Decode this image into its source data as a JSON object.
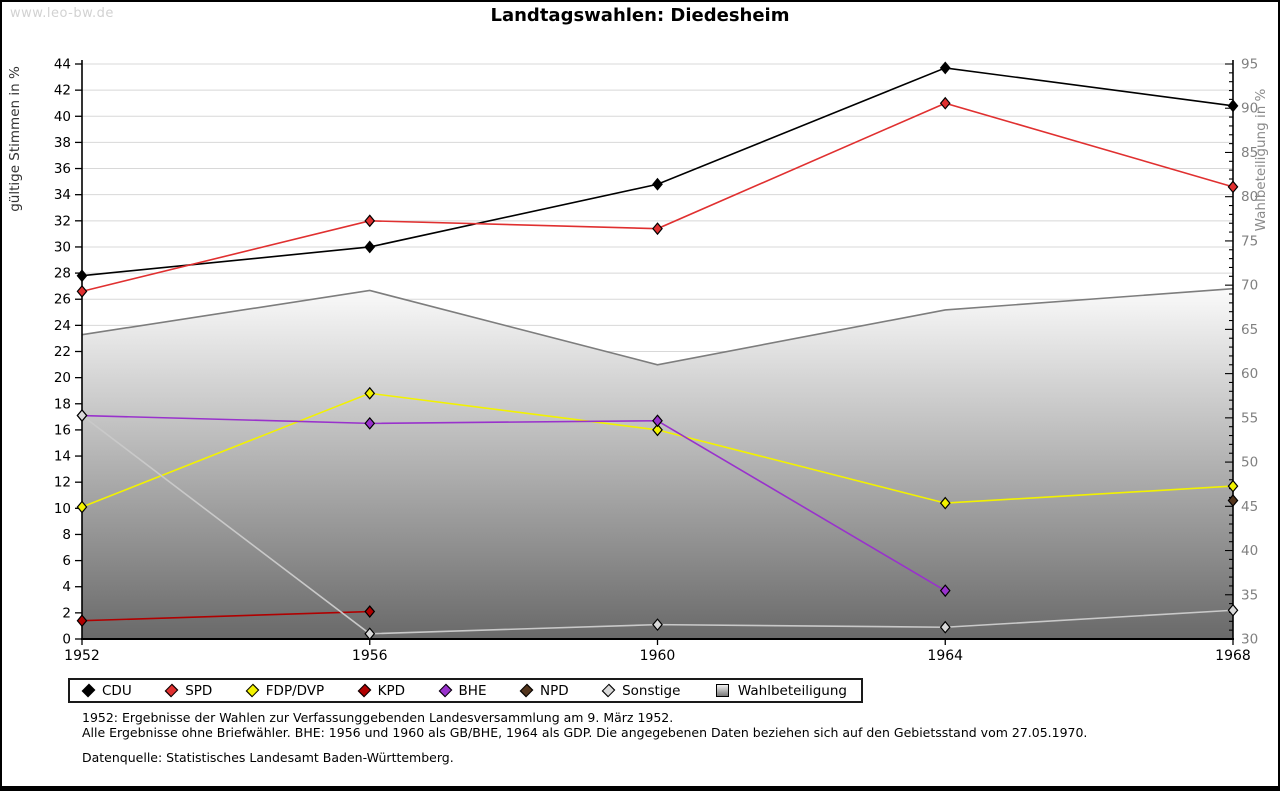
{
  "watermark": "www.leo-bw.de",
  "title": "Landtagswahlen: Diedesheim",
  "left_axis": {
    "label": "gültige Stimmen in %",
    "min": 0,
    "max": 44,
    "step": 2
  },
  "right_axis": {
    "label": "Wahlbeteiligung in %",
    "min": 30,
    "max": 95,
    "step": 5
  },
  "chart_data": {
    "type": "line",
    "x": [
      1952,
      1956,
      1960,
      1964,
      1968
    ],
    "grid": true,
    "legend_position": "bottom",
    "series": [
      {
        "name": "CDU",
        "kind": "line",
        "axis": "left",
        "color": "#000000",
        "values": [
          27.8,
          30.0,
          34.8,
          43.7,
          40.8
        ]
      },
      {
        "name": "SPD",
        "kind": "line",
        "axis": "left",
        "color": "#e03030",
        "values": [
          26.6,
          32.0,
          31.4,
          41.0,
          34.6
        ]
      },
      {
        "name": "FDP/DVP",
        "kind": "line",
        "axis": "left",
        "color": "#f2f200",
        "values": [
          10.1,
          18.8,
          16.0,
          10.4,
          11.7
        ]
      },
      {
        "name": "KPD",
        "kind": "line",
        "axis": "left",
        "color": "#b00000",
        "values": [
          1.4,
          2.1,
          null,
          null,
          null
        ]
      },
      {
        "name": "BHE",
        "kind": "line",
        "axis": "left",
        "color": "#9932cc",
        "values": [
          17.1,
          16.5,
          16.7,
          3.7,
          null
        ]
      },
      {
        "name": "NPD",
        "kind": "line",
        "axis": "left",
        "color": "#53351d",
        "values": [
          null,
          null,
          null,
          null,
          10.6
        ]
      },
      {
        "name": "Sonstige",
        "kind": "line",
        "axis": "left",
        "color": "#c9c9c9",
        "values": [
          17.1,
          0.4,
          1.1,
          0.9,
          2.2
        ]
      },
      {
        "name": "Wahlbeteiligung",
        "kind": "area",
        "axis": "right",
        "color": "#7d7d7d",
        "values": [
          64.4,
          69.4,
          61.0,
          67.2,
          69.6
        ]
      }
    ]
  },
  "colors": {
    "grid": "#d8d8d8",
    "axis": "#000000",
    "right_tick_text": "#808080",
    "left_axis_label": "#333333",
    "right_axis_label": "#8a8a8a",
    "area_top": "#fdfdfd",
    "area_bottom": "#696969",
    "marker_fill_sonstige": "#d9d9d9"
  },
  "footnotes": {
    "line1": "1952: Ergebnisse der Wahlen zur Verfassunggebenden Landesversammlung am 9. März 1952.",
    "line2": "Alle Ergebnisse ohne Briefwähler. BHE: 1956 und 1960 als GB/BHE, 1964 als GDP. Die angegebenen Daten beziehen sich auf den Gebietsstand vom 27.05.1970."
  },
  "source": "Datenquelle: Statistisches Landesamt Baden-Württemberg."
}
